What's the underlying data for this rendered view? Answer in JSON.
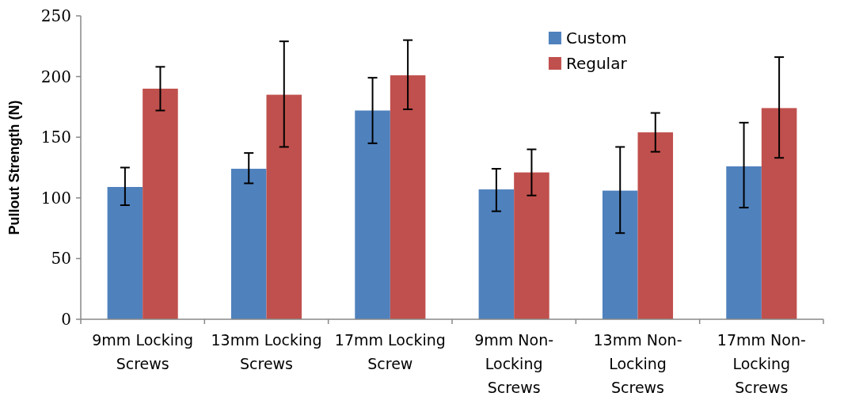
{
  "chart_data": {
    "type": "bar",
    "ylabel": "Pullout Strength (N)",
    "categories": [
      "9mm Locking Screws",
      "13mm Locking Screws",
      "17mm Locking Screw",
      "9mm Non-Locking Screws",
      "13mm Non-Locking Screws",
      "17mm Non-Locking Screws"
    ],
    "series": [
      {
        "name": "Custom",
        "color": "#4f81bd",
        "values": [
          109,
          124,
          172,
          107,
          106,
          126
        ],
        "errors": [
          [
            94,
            125
          ],
          [
            112,
            137
          ],
          [
            145,
            199
          ],
          [
            89,
            124
          ],
          [
            71,
            142
          ],
          [
            92,
            162
          ]
        ]
      },
      {
        "name": "Regular",
        "color": "#c0504d",
        "values": [
          190,
          185,
          201,
          121,
          154,
          174
        ],
        "errors": [
          [
            172,
            208
          ],
          [
            142,
            229
          ],
          [
            173,
            230
          ],
          [
            102,
            140
          ],
          [
            138,
            170
          ],
          [
            133,
            216
          ]
        ]
      }
    ],
    "ylim": [
      0,
      250
    ],
    "yticks": [
      0,
      50,
      100,
      150,
      200,
      250
    ],
    "grid": false,
    "legend": "top right"
  }
}
